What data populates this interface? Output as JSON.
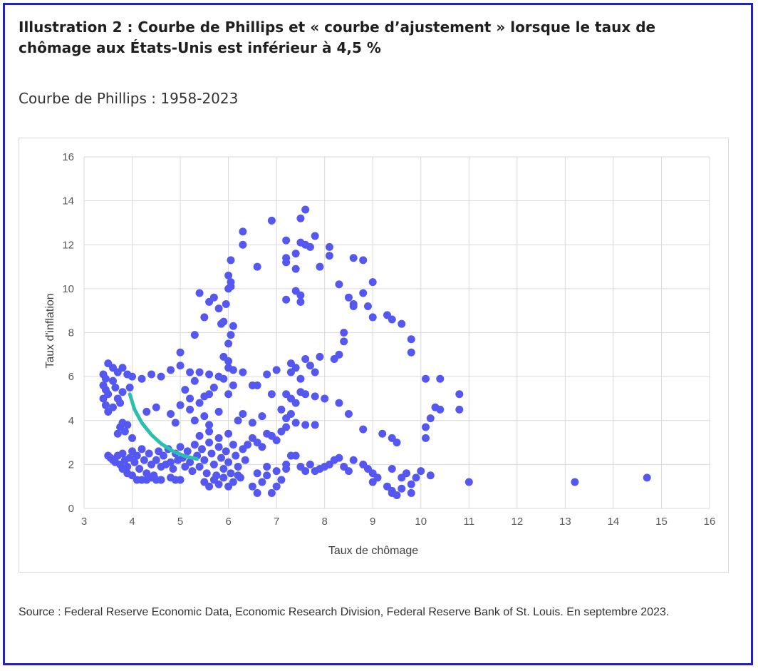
{
  "title": "Illustration 2 : Courbe de Phillips et « courbe d’ajustement » lorsque le taux de chômage aux États-Unis est inférieur à 4,5 %",
  "subtitle": "Courbe de Phillips : 1958-2023",
  "source": "Source : Federal Reserve Economic Data, Economic Research Division, Federal Reserve Bank of St. Louis. En septembre 2023.",
  "colors": {
    "frame": "#2222bb",
    "points": "#5558f0",
    "fit_curve": "#2bbfb0",
    "grid": "#d9d9d9"
  },
  "chart_data": {
    "type": "scatter",
    "xlabel": "Taux de chômage",
    "ylabel": "Taux d'inflation",
    "xlim": [
      3,
      16
    ],
    "ylim": [
      0,
      16
    ],
    "xticks": [
      3,
      4,
      5,
      6,
      7,
      8,
      9,
      10,
      11,
      12,
      13,
      14,
      15,
      16
    ],
    "yticks": [
      0,
      2,
      4,
      6,
      8,
      10,
      12,
      14,
      16
    ],
    "grid": true,
    "fit_curve": [
      [
        3.95,
        5.2
      ],
      [
        4.05,
        4.5
      ],
      [
        4.2,
        3.9
      ],
      [
        4.4,
        3.35
      ],
      [
        4.6,
        2.95
      ],
      [
        4.85,
        2.6
      ],
      [
        5.1,
        2.38
      ],
      [
        5.35,
        2.25
      ]
    ],
    "points": [
      [
        3.4,
        6.1
      ],
      [
        3.45,
        5.9
      ],
      [
        3.5,
        6.6
      ],
      [
        3.6,
        6.4
      ],
      [
        3.7,
        6.2
      ],
      [
        3.8,
        6.4
      ],
      [
        3.9,
        6.1
      ],
      [
        4.0,
        6.0
      ],
      [
        3.4,
        5.6
      ],
      [
        3.45,
        5.4
      ],
      [
        3.5,
        5.2
      ],
      [
        3.6,
        5.8
      ],
      [
        3.65,
        5.5
      ],
      [
        3.7,
        5.0
      ],
      [
        3.75,
        4.8
      ],
      [
        3.8,
        5.3
      ],
      [
        3.95,
        5.5
      ],
      [
        3.4,
        5.0
      ],
      [
        3.45,
        4.7
      ],
      [
        3.5,
        4.4
      ],
      [
        3.6,
        4.6
      ],
      [
        3.7,
        3.4
      ],
      [
        3.75,
        3.7
      ],
      [
        3.8,
        3.9
      ],
      [
        3.85,
        3.5
      ],
      [
        3.9,
        3.8
      ],
      [
        4.0,
        3.2
      ],
      [
        3.5,
        2.4
      ],
      [
        3.55,
        2.3
      ],
      [
        3.6,
        2.2
      ],
      [
        3.65,
        2.1
      ],
      [
        3.7,
        2.4
      ],
      [
        3.75,
        2.0
      ],
      [
        3.8,
        2.5
      ],
      [
        3.85,
        2.2
      ],
      [
        3.9,
        1.9
      ],
      [
        3.95,
        2.3
      ],
      [
        4.0,
        2.6
      ],
      [
        4.05,
        2.1
      ],
      [
        4.1,
        2.4
      ],
      [
        4.15,
        1.8
      ],
      [
        4.2,
        2.7
      ],
      [
        4.25,
        2.2
      ],
      [
        4.3,
        1.6
      ],
      [
        4.35,
        2.5
      ],
      [
        4.4,
        2.0
      ],
      [
        4.45,
        1.5
      ],
      [
        3.8,
        1.8
      ],
      [
        3.9,
        1.6
      ],
      [
        4.0,
        1.5
      ],
      [
        4.1,
        1.3
      ],
      [
        4.2,
        1.3
      ],
      [
        4.3,
        1.3
      ],
      [
        4.4,
        1.4
      ],
      [
        4.5,
        1.3
      ],
      [
        4.6,
        1.3
      ],
      [
        4.8,
        1.4
      ],
      [
        4.9,
        1.3
      ],
      [
        5.0,
        1.3
      ],
      [
        4.5,
        2.2
      ],
      [
        4.55,
        2.6
      ],
      [
        4.6,
        1.9
      ],
      [
        4.65,
        2.4
      ],
      [
        4.7,
        2.0
      ],
      [
        4.75,
        2.7
      ],
      [
        4.8,
        2.1
      ],
      [
        4.85,
        1.8
      ],
      [
        4.9,
        2.5
      ],
      [
        4.95,
        2.2
      ],
      [
        5.0,
        2.8
      ],
      [
        5.05,
        2.3
      ],
      [
        5.1,
        1.9
      ],
      [
        5.15,
        2.6
      ],
      [
        5.2,
        2.1
      ],
      [
        5.25,
        1.7
      ],
      [
        5.3,
        2.9
      ],
      [
        5.35,
        2.4
      ],
      [
        5.4,
        1.9
      ],
      [
        5.45,
        2.7
      ],
      [
        5.5,
        2.2
      ],
      [
        5.55,
        1.6
      ],
      [
        5.6,
        3.0
      ],
      [
        5.65,
        2.5
      ],
      [
        5.7,
        2.0
      ],
      [
        5.75,
        1.5
      ],
      [
        5.8,
        2.8
      ],
      [
        5.85,
        2.3
      ],
      [
        5.9,
        1.8
      ],
      [
        5.95,
        2.6
      ],
      [
        6.0,
        2.1
      ],
      [
        6.05,
        1.6
      ],
      [
        6.1,
        2.9
      ],
      [
        6.15,
        2.4
      ],
      [
        6.2,
        1.9
      ],
      [
        6.25,
        1.4
      ],
      [
        6.3,
        2.7
      ],
      [
        6.35,
        2.2
      ],
      [
        5.5,
        1.2
      ],
      [
        5.6,
        1.0
      ],
      [
        5.7,
        1.3
      ],
      [
        5.8,
        1.1
      ],
      [
        5.9,
        1.4
      ],
      [
        6.0,
        1.0
      ],
      [
        6.1,
        1.2
      ],
      [
        6.2,
        1.5
      ],
      [
        5.4,
        3.3
      ],
      [
        5.6,
        3.5
      ],
      [
        5.8,
        3.2
      ],
      [
        6.0,
        3.4
      ],
      [
        4.3,
        4.4
      ],
      [
        4.5,
        4.6
      ],
      [
        4.8,
        4.3
      ],
      [
        5.0,
        4.7
      ],
      [
        5.2,
        4.5
      ],
      [
        4.9,
        3.9
      ],
      [
        5.3,
        4.0
      ],
      [
        5.5,
        4.2
      ],
      [
        5.6,
        3.8
      ],
      [
        5.8,
        4.4
      ],
      [
        4.2,
        5.9
      ],
      [
        4.4,
        6.1
      ],
      [
        4.6,
        6.0
      ],
      [
        4.8,
        6.3
      ],
      [
        5.0,
        6.5
      ],
      [
        5.2,
        6.2
      ],
      [
        5.0,
        7.1
      ],
      [
        5.4,
        6.2
      ],
      [
        5.6,
        6.1
      ],
      [
        5.8,
        6.0
      ],
      [
        6.0,
        6.4
      ],
      [
        5.1,
        5.4
      ],
      [
        5.3,
        5.8
      ],
      [
        5.5,
        5.1
      ],
      [
        5.7,
        5.5
      ],
      [
        5.9,
        5.9
      ],
      [
        6.0,
        5.2
      ],
      [
        6.1,
        5.6
      ],
      [
        5.2,
        5.0
      ],
      [
        5.4,
        4.8
      ],
      [
        5.6,
        5.2
      ],
      [
        5.3,
        7.9
      ],
      [
        5.5,
        8.7
      ],
      [
        5.6,
        9.4
      ],
      [
        5.7,
        9.6
      ],
      [
        5.8,
        9.1
      ],
      [
        5.85,
        8.4
      ],
      [
        5.9,
        8.5
      ],
      [
        5.95,
        9.3
      ],
      [
        6.0,
        10.0
      ],
      [
        6.0,
        10.6
      ],
      [
        5.4,
        9.8
      ],
      [
        6.05,
        10.3
      ],
      [
        6.05,
        10.1
      ],
      [
        6.05,
        11.3
      ],
      [
        6.0,
        7.5
      ],
      [
        6.05,
        7.9
      ],
      [
        6.1,
        8.3
      ],
      [
        5.9,
        6.9
      ],
      [
        6.0,
        6.7
      ],
      [
        6.1,
        6.3
      ],
      [
        6.3,
        12.6
      ],
      [
        6.3,
        12.0
      ],
      [
        6.6,
        11.0
      ],
      [
        6.3,
        6.2
      ],
      [
        6.5,
        5.6
      ],
      [
        6.6,
        5.6
      ],
      [
        6.2,
        4.0
      ],
      [
        6.3,
        4.3
      ],
      [
        6.5,
        3.9
      ],
      [
        6.7,
        4.2
      ],
      [
        6.4,
        2.9
      ],
      [
        6.5,
        3.2
      ],
      [
        6.6,
        3.0
      ],
      [
        6.7,
        2.8
      ],
      [
        6.8,
        3.4
      ],
      [
        6.9,
        3.3
      ],
      [
        7.0,
        3.1
      ],
      [
        7.1,
        3.5
      ],
      [
        7.2,
        3.7
      ],
      [
        6.5,
        1.0
      ],
      [
        6.6,
        0.7
      ],
      [
        6.7,
        1.2
      ],
      [
        6.8,
        1.5
      ],
      [
        6.9,
        0.7
      ],
      [
        7.0,
        1.0
      ],
      [
        7.1,
        1.3
      ],
      [
        6.6,
        1.6
      ],
      [
        6.8,
        1.9
      ],
      [
        7.0,
        1.7
      ],
      [
        7.2,
        2.0
      ],
      [
        6.9,
        13.1
      ],
      [
        7.2,
        12.2
      ],
      [
        7.2,
        11.4
      ],
      [
        7.2,
        11.2
      ],
      [
        7.4,
        11.6
      ],
      [
        7.4,
        10.9
      ],
      [
        7.5,
        12.1
      ],
      [
        7.6,
        12.0
      ],
      [
        7.6,
        13.6
      ],
      [
        7.5,
        13.2
      ],
      [
        7.7,
        11.9
      ],
      [
        7.8,
        12.4
      ],
      [
        7.9,
        11.0
      ],
      [
        8.1,
        11.9
      ],
      [
        8.1,
        11.5
      ],
      [
        7.2,
        9.5
      ],
      [
        7.4,
        9.9
      ],
      [
        7.5,
        9.7
      ],
      [
        7.5,
        9.4
      ],
      [
        7.3,
        6.2
      ],
      [
        7.3,
        6.6
      ],
      [
        7.4,
        6.4
      ],
      [
        7.5,
        5.9
      ],
      [
        7.6,
        6.8
      ],
      [
        7.7,
        6.5
      ],
      [
        7.8,
        6.2
      ],
      [
        7.9,
        6.9
      ],
      [
        7.2,
        5.2
      ],
      [
        7.3,
        5.0
      ],
      [
        7.4,
        4.8
      ],
      [
        7.5,
        5.3
      ],
      [
        7.1,
        4.5
      ],
      [
        7.2,
        4.1
      ],
      [
        7.3,
        4.3
      ],
      [
        7.4,
        3.9
      ],
      [
        7.6,
        3.8
      ],
      [
        7.8,
        3.8
      ],
      [
        7.0,
        6.3
      ],
      [
        6.8,
        6.1
      ],
      [
        6.9,
        5.2
      ],
      [
        7.2,
        1.8
      ],
      [
        7.3,
        2.4
      ],
      [
        7.4,
        2.4
      ],
      [
        7.5,
        1.9
      ],
      [
        7.6,
        1.7
      ],
      [
        7.7,
        2.0
      ],
      [
        7.8,
        1.7
      ],
      [
        7.9,
        1.8
      ],
      [
        8.0,
        1.9
      ],
      [
        8.1,
        2.0
      ],
      [
        8.2,
        2.2
      ],
      [
        8.3,
        2.3
      ],
      [
        8.4,
        1.9
      ],
      [
        8.5,
        1.7
      ],
      [
        8.6,
        2.2
      ],
      [
        8.8,
        2.0
      ],
      [
        8.9,
        1.8
      ],
      [
        9.0,
        1.6
      ],
      [
        9.1,
        1.4
      ],
      [
        9.0,
        1.2
      ],
      [
        9.3,
        1.0
      ],
      [
        9.4,
        0.7
      ],
      [
        9.4,
        0.8
      ],
      [
        9.6,
        0.9
      ],
      [
        9.5,
        0.6
      ],
      [
        9.6,
        1.4
      ],
      [
        9.8,
        1.1
      ],
      [
        9.9,
        1.4
      ],
      [
        10.0,
        1.7
      ],
      [
        10.2,
        1.5
      ],
      [
        9.4,
        1.8
      ],
      [
        9.7,
        1.6
      ],
      [
        9.8,
        0.7
      ],
      [
        8.2,
        6.8
      ],
      [
        8.3,
        7.0
      ],
      [
        8.4,
        7.6
      ],
      [
        8.4,
        8.0
      ],
      [
        8.3,
        10.2
      ],
      [
        8.5,
        9.6
      ],
      [
        8.6,
        9.2
      ],
      [
        8.6,
        9.3
      ],
      [
        8.6,
        11.4
      ],
      [
        8.8,
        11.3
      ],
      [
        8.8,
        9.8
      ],
      [
        8.9,
        9.2
      ],
      [
        9.0,
        10.3
      ],
      [
        9.0,
        8.7
      ],
      [
        9.3,
        8.8
      ],
      [
        9.4,
        8.6
      ],
      [
        9.6,
        8.4
      ],
      [
        9.8,
        7.7
      ],
      [
        9.8,
        7.1
      ],
      [
        10.1,
        5.9
      ],
      [
        10.2,
        4.1
      ],
      [
        10.3,
        4.6
      ],
      [
        10.4,
        4.5
      ],
      [
        10.4,
        5.9
      ],
      [
        10.8,
        5.2
      ],
      [
        10.8,
        4.5
      ],
      [
        10.1,
        3.7
      ],
      [
        10.1,
        3.2
      ],
      [
        9.5,
        3.0
      ],
      [
        9.4,
        3.2
      ],
      [
        9.2,
        3.4
      ],
      [
        8.8,
        3.6
      ],
      [
        8.5,
        4.3
      ],
      [
        8.3,
        4.8
      ],
      [
        8.0,
        5.0
      ],
      [
        7.8,
        5.1
      ],
      [
        7.6,
        5.2
      ],
      [
        11.0,
        1.2
      ],
      [
        13.2,
        1.2
      ],
      [
        14.7,
        1.4
      ]
    ]
  }
}
